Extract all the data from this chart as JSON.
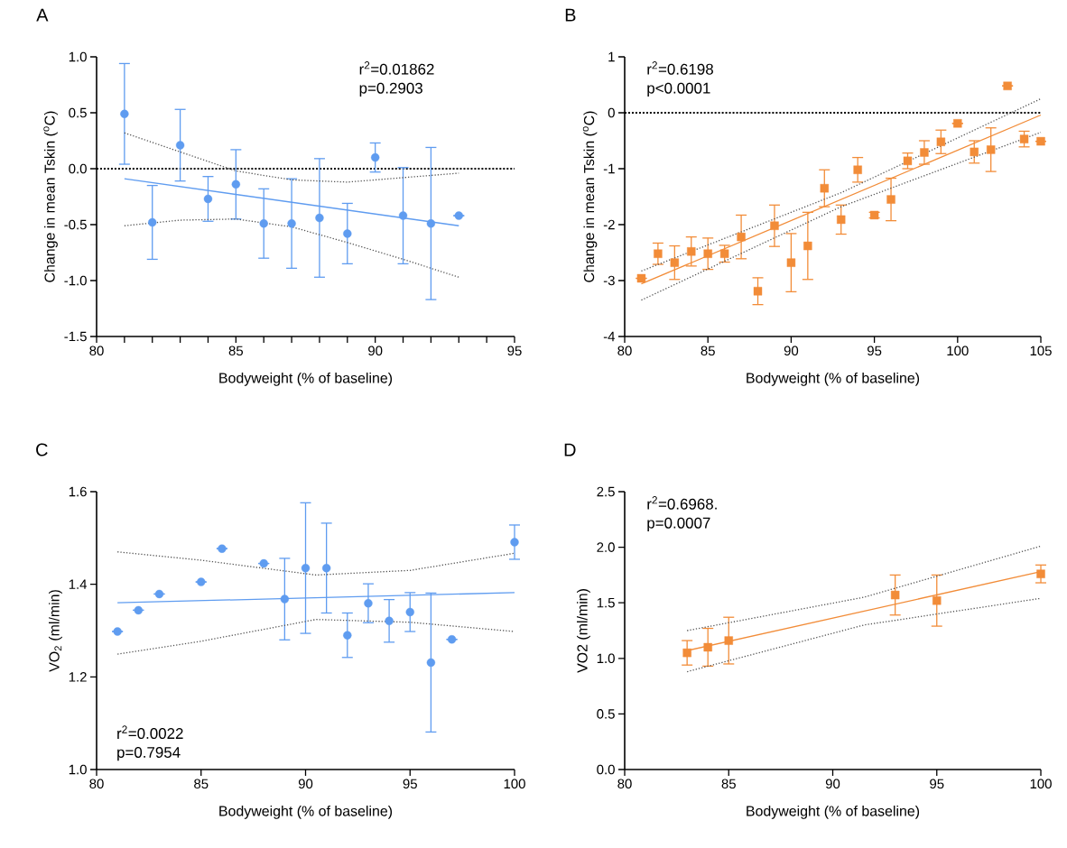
{
  "chart_data": [
    {
      "type": "scatter",
      "title": "A",
      "xlabel": "Bodyweight (% of baseline)",
      "ylabel": "Change in mean Tskin ($^{o}$C)",
      "xlim": [
        80,
        95
      ],
      "ylim": [
        -1.5,
        1.0
      ],
      "xticks": [
        80,
        {
          "value": 81,
          "label": null
        },
        {
          "value": 82,
          "label": null
        },
        {
          "value": 83,
          "label": null
        },
        {
          "value": 84,
          "label": null
        },
        85,
        {
          "value": 86,
          "label": null
        },
        {
          "value": 87,
          "label": null
        },
        {
          "value": 88,
          "label": null
        },
        {
          "value": 89,
          "label": null
        },
        90,
        {
          "value": 91,
          "label": null
        },
        {
          "value": 92,
          "label": null
        },
        {
          "value": 93,
          "label": null
        },
        {
          "value": 94,
          "label": null
        },
        95
      ],
      "yticks": [
        -1.5,
        {
          "value": -1,
          "label": "-1.0"
        },
        -0.5,
        {
          "value": 0,
          "label": "0.0"
        },
        0.5,
        {
          "value": 1,
          "label": "1.0"
        }
      ],
      "annotations": [
        "r$^{2}$=0.01862",
        "p=0.2903"
      ],
      "ref_lines": [
        {
          "axis": "y",
          "value": 0,
          "color": "#000000",
          "line_style": "dotted"
        }
      ],
      "series": [
        {
          "marker": "circle",
          "color": "#5f9cf0",
          "x": [
            81,
            82,
            83,
            84,
            85,
            86,
            87,
            88,
            89,
            90,
            91,
            92,
            93
          ],
          "values": [
            0.49,
            -0.48,
            0.21,
            -0.27,
            -0.14,
            -0.49,
            -0.49,
            -0.44,
            -0.58,
            0.1,
            -0.42,
            -0.49,
            -0.42
          ],
          "errors": [
            0.45,
            0.33,
            0.32,
            0.2,
            0.31,
            0.31,
            0.4,
            0.53,
            0.27,
            0.13,
            0.43,
            0.68,
            null
          ]
        },
        {
          "type": "line",
          "color": "#5f9cf0",
          "x": [
            81,
            93
          ],
          "values": [
            -0.09,
            -0.51
          ]
        },
        {
          "type": "line",
          "line_style": "dotted",
          "color": "#555555",
          "x": [
            81,
            83,
            85,
            87,
            89,
            91,
            93
          ],
          "values": [
            0.32,
            0.15,
            -0.02,
            -0.1,
            -0.12,
            -0.08,
            -0.04
          ]
        },
        {
          "type": "line",
          "line_style": "dotted",
          "color": "#555555",
          "x": [
            81,
            83,
            85,
            87,
            89,
            91,
            93
          ],
          "values": [
            -0.51,
            -0.46,
            -0.45,
            -0.52,
            -0.66,
            -0.81,
            -0.97
          ]
        }
      ]
    },
    {
      "type": "scatter",
      "title": "B",
      "xlabel": "Bodyweight (% of baseline)",
      "ylabel": "Change in mean Tskin ($^{o}$C)",
      "xlim": [
        80,
        105
      ],
      "ylim": [
        -4,
        1
      ],
      "xticks": [
        80,
        85,
        90,
        95,
        100,
        105
      ],
      "yticks": [
        -4,
        -3,
        -2,
        -1,
        0,
        1
      ],
      "annotations": [
        "r$^{2}$=0.6198",
        "p<0.0001"
      ],
      "ref_lines": [
        {
          "axis": "y",
          "value": 0,
          "color": "#000000",
          "line_style": "dotted"
        }
      ],
      "series": [
        {
          "marker": "square",
          "color": "#f28c38",
          "x": [
            81,
            82,
            83,
            84,
            85,
            86,
            87,
            88,
            89,
            90,
            91,
            92,
            93,
            94,
            95,
            96,
            97,
            98,
            99,
            100,
            101,
            102,
            103,
            104,
            105
          ],
          "values": [
            -2.96,
            -2.52,
            -2.68,
            -2.48,
            -2.52,
            -2.52,
            -2.22,
            -3.19,
            -2.02,
            -2.68,
            -2.38,
            -1.35,
            -1.91,
            -1.02,
            -1.83,
            -1.55,
            -0.86,
            -0.71,
            -0.52,
            -0.19,
            -0.7,
            -0.66,
            0.48,
            -0.47,
            -0.51
          ],
          "errors": [
            null,
            0.19,
            0.3,
            0.26,
            0.28,
            0.15,
            0.39,
            0.24,
            0.37,
            0.52,
            0.6,
            0.33,
            0.26,
            0.22,
            0.05,
            0.38,
            0.14,
            0.21,
            0.21,
            null,
            0.2,
            0.39,
            null,
            0.14,
            null
          ]
        },
        {
          "type": "line",
          "color": "#f28c38",
          "x": [
            81,
            105
          ],
          "values": [
            -3.06,
            -0.04
          ]
        },
        {
          "type": "line",
          "line_style": "dotted",
          "color": "#555555",
          "x": [
            81,
            93,
            105
          ],
          "values": [
            -2.83,
            -1.43,
            0.25
          ]
        },
        {
          "type": "line",
          "line_style": "dotted",
          "color": "#555555",
          "x": [
            81,
            93,
            105
          ],
          "values": [
            -3.35,
            -1.68,
            -0.35
          ]
        }
      ]
    },
    {
      "type": "scatter",
      "title": "C",
      "xlabel": "Bodyweight (% of baseline)",
      "ylabel": "VO$_{2}$ (ml/min)",
      "xlim": [
        80,
        100
      ],
      "ylim": [
        1.0,
        1.6
      ],
      "xticks": [
        80,
        85,
        90,
        95,
        100
      ],
      "yticks": [
        {
          "value": 1,
          "label": "1.0"
        },
        1.2,
        1.4,
        1.6
      ],
      "annotations": [
        "r$^{2}$=0.0022",
        "p=0.7954"
      ],
      "series": [
        {
          "marker": "circle",
          "color": "#5f9cf0",
          "x": [
            81,
            82,
            83,
            85,
            86,
            88,
            89,
            90,
            91,
            92,
            93,
            94,
            95,
            96,
            97,
            100
          ],
          "values": [
            1.298,
            1.344,
            1.379,
            1.405,
            1.477,
            1.445,
            1.368,
            1.435,
            1.435,
            1.29,
            1.359,
            1.321,
            1.34,
            1.231,
            1.281,
            1.491
          ],
          "errors": [
            null,
            null,
            null,
            null,
            null,
            null,
            0.088,
            0.141,
            0.097,
            0.048,
            0.042,
            0.046,
            0.042,
            0.15,
            null,
            0.037
          ]
        },
        {
          "type": "line",
          "color": "#5f9cf0",
          "x": [
            81,
            100
          ],
          "values": [
            1.36,
            1.382
          ]
        },
        {
          "type": "line",
          "line_style": "dotted",
          "color": "#555555",
          "x": [
            81,
            85,
            90.5,
            95,
            100
          ],
          "values": [
            1.47,
            1.452,
            1.42,
            1.43,
            1.467
          ]
        },
        {
          "type": "line",
          "line_style": "dotted",
          "color": "#555555",
          "x": [
            81,
            85,
            90.5,
            95,
            100
          ],
          "values": [
            1.249,
            1.277,
            1.324,
            1.318,
            1.298
          ]
        }
      ]
    },
    {
      "type": "scatter",
      "title": "D",
      "xlabel": "Bodyweight (% of baseline)",
      "ylabel": "VO2 (ml/min)",
      "xlim": [
        80,
        100
      ],
      "ylim": [
        0.0,
        2.5
      ],
      "xticks": [
        80,
        85,
        90,
        95,
        100
      ],
      "yticks": [
        {
          "value": 0,
          "label": "0.0"
        },
        0.5,
        {
          "value": 1,
          "label": "1.0"
        },
        1.5,
        {
          "value": 2,
          "label": "2.0"
        },
        2.5
      ],
      "annotations": [
        "r$^{2}$=0.6968.",
        "p=0.0007"
      ],
      "series": [
        {
          "marker": "square",
          "color": "#f28c38",
          "x": [
            83,
            84,
            85,
            93,
            95,
            100
          ],
          "values": [
            1.05,
            1.1,
            1.16,
            1.57,
            1.52,
            1.76
          ],
          "errors": [
            0.11,
            0.17,
            0.21,
            0.18,
            0.23,
            0.08
          ]
        },
        {
          "type": "line",
          "color": "#f28c38",
          "x": [
            83,
            100
          ],
          "values": [
            1.07,
            1.78
          ]
        },
        {
          "type": "line",
          "line_style": "dotted",
          "color": "#555555",
          "x": [
            83,
            91.5,
            100
          ],
          "values": [
            1.25,
            1.55,
            2.01
          ]
        },
        {
          "type": "line",
          "line_style": "dotted",
          "color": "#555555",
          "x": [
            83,
            91.5,
            100
          ],
          "values": [
            0.88,
            1.3,
            1.54
          ]
        }
      ]
    }
  ]
}
